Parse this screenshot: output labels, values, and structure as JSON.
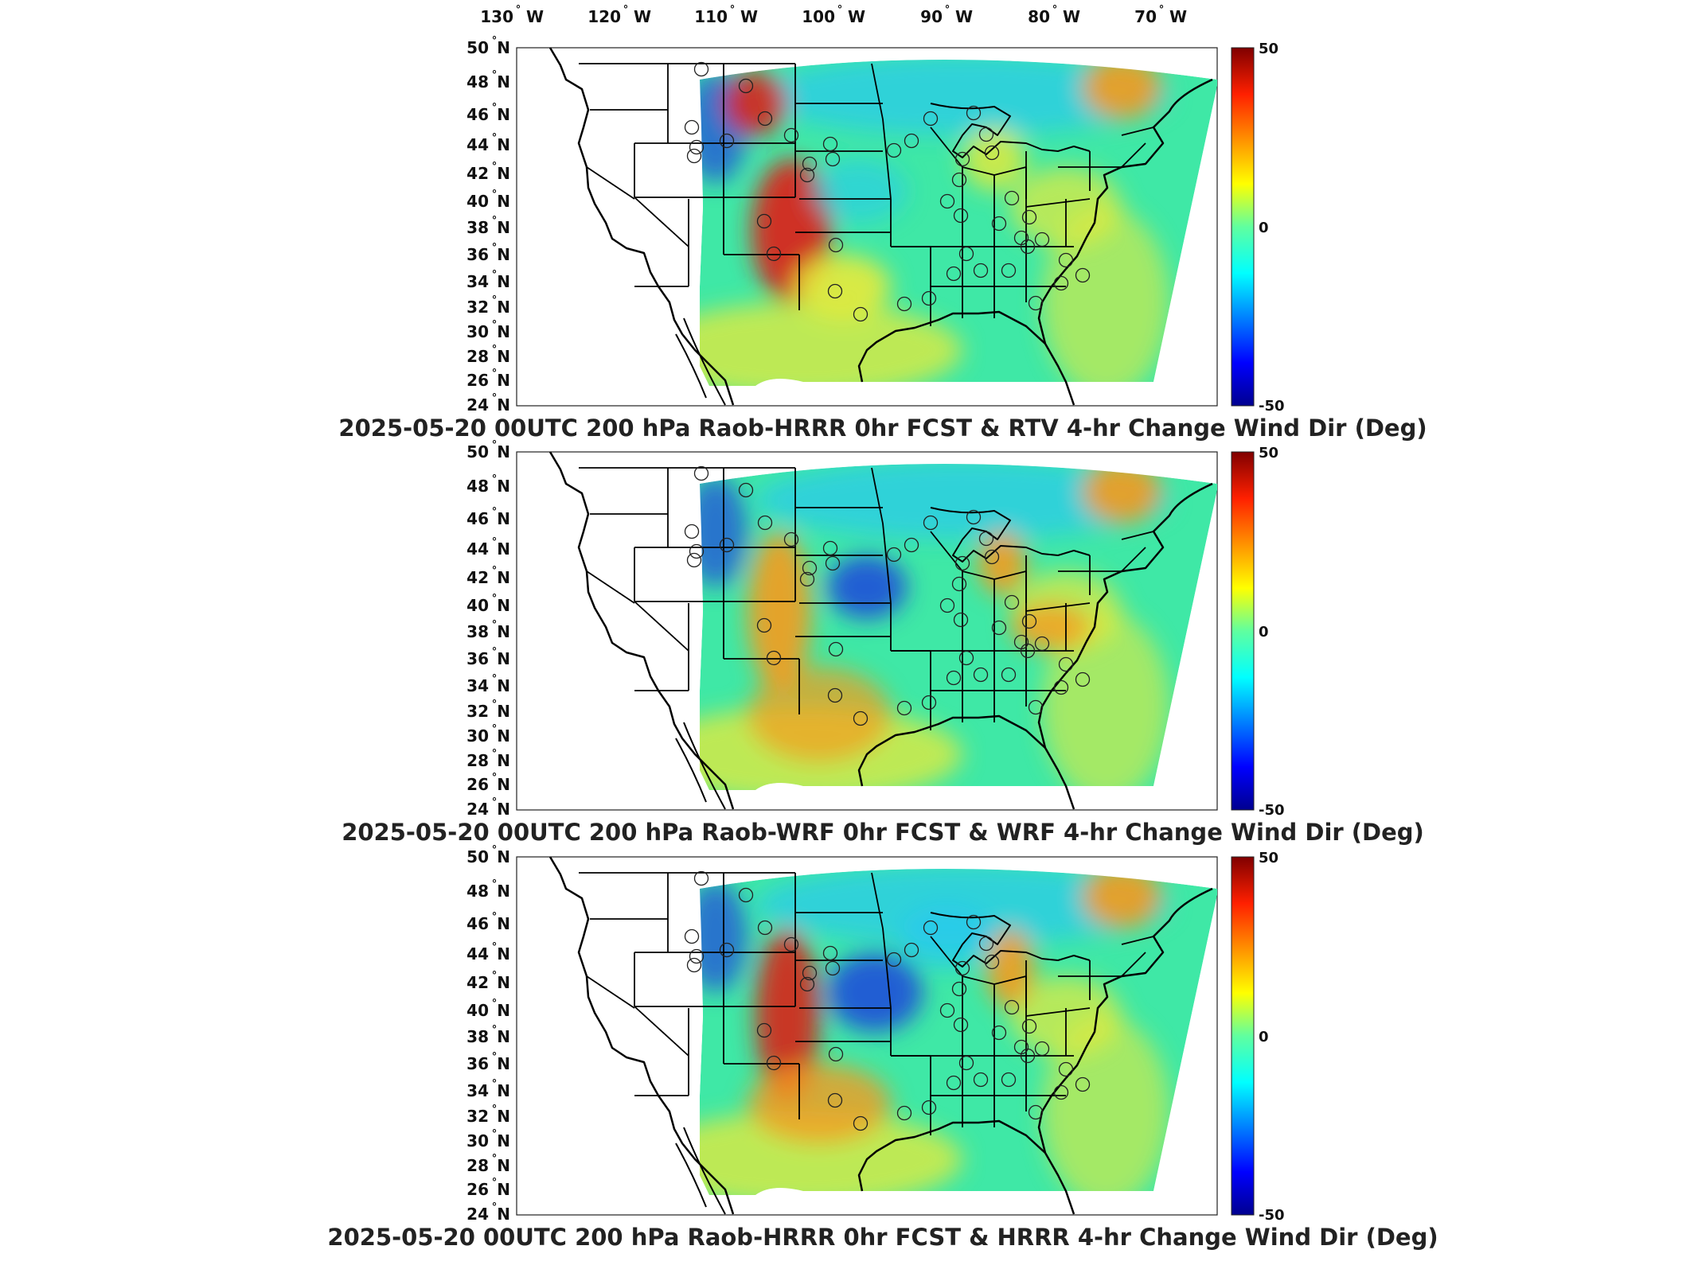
{
  "lon_labels": [
    {
      "value": "130",
      "deg": "°",
      "hemi": "W"
    },
    {
      "value": "120",
      "deg": "°",
      "hemi": "W"
    },
    {
      "value": "110",
      "deg": "°",
      "hemi": "W"
    },
    {
      "value": "100",
      "deg": "°",
      "hemi": "W"
    },
    {
      "value": "90",
      "deg": "°",
      "hemi": "W"
    },
    {
      "value": "80",
      "deg": "°",
      "hemi": "W"
    },
    {
      "value": "70",
      "deg": "°",
      "hemi": "W"
    }
  ],
  "lat_labels": [
    {
      "value": "50",
      "hemi": "N"
    },
    {
      "value": "48",
      "hemi": "N"
    },
    {
      "value": "46",
      "hemi": "N"
    },
    {
      "value": "44",
      "hemi": "N"
    },
    {
      "value": "42",
      "hemi": "N"
    },
    {
      "value": "40",
      "hemi": "N"
    },
    {
      "value": "38",
      "hemi": "N"
    },
    {
      "value": "36",
      "hemi": "N"
    },
    {
      "value": "34",
      "hemi": "N"
    },
    {
      "value": "32",
      "hemi": "N"
    },
    {
      "value": "30",
      "hemi": "N"
    },
    {
      "value": "28",
      "hemi": "N"
    },
    {
      "value": "26",
      "hemi": "N"
    },
    {
      "value": "24",
      "hemi": "N"
    }
  ],
  "colorbar": {
    "max_label": "50",
    "mid_label": "0",
    "min_label": "-50",
    "colors": [
      "#00008f",
      "#0000ff",
      "#00bfff",
      "#40ffbf",
      "#bfff40",
      "#ffbf00",
      "#ff4000",
      "#800000"
    ]
  },
  "panels": [
    {
      "title": "2025-05-20 00UTC 200 hPa Raob-HRRR 0hr FCST & RTV 4-hr Change Wind Dir (Deg)",
      "variant": "rtv"
    },
    {
      "title": "2025-05-20 00UTC 200 hPa Raob-WRF 0hr FCST & WRF 4-hr Change Wind Dir (Deg)",
      "variant": "wrf"
    },
    {
      "title": "2025-05-20 00UTC 200 hPa Raob-HRRR 0hr FCST & HRRR 4-hr Change Wind Dir (Deg)",
      "variant": "hrrr"
    }
  ],
  "field_colors": {
    "background": "#3fe8a6",
    "warm": "#e8ea3a",
    "orange": "#f59b1e",
    "red": "#d7261a",
    "cyan": "#28c9ee",
    "blue": "#1f4fd8"
  },
  "symbols": {
    "station": "raob-station-circle"
  }
}
